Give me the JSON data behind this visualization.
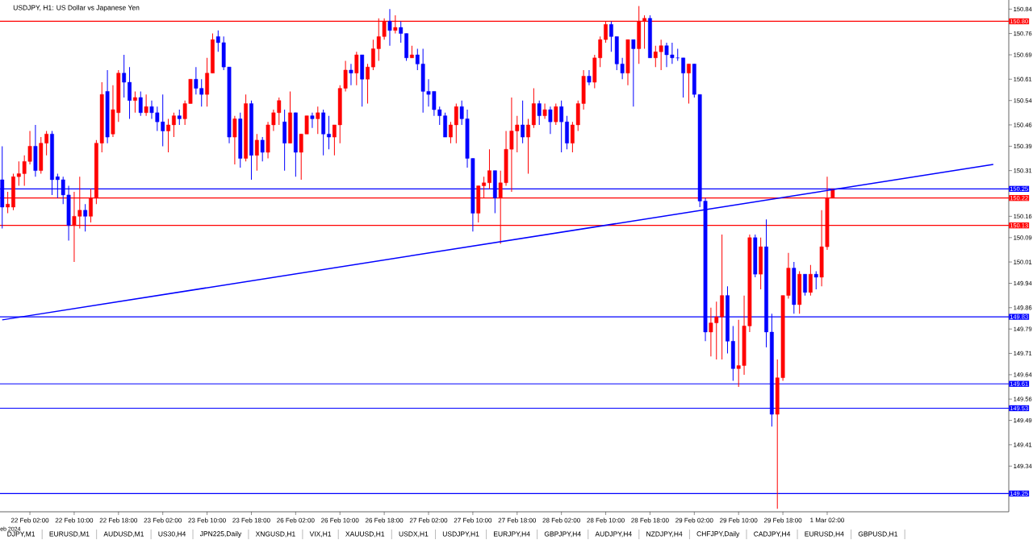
{
  "chart_data": {
    "type": "candlestick",
    "title": "USDJPY, H1:  US Dollar vs Japanese Yen",
    "categories": [
      null,
      null,
      null,
      null,
      null,
      "22 Feb 02:00",
      null,
      null,
      null,
      null,
      null,
      null,
      null,
      "22 Feb 10:00",
      null,
      null,
      null,
      null,
      null,
      null,
      null,
      "22 Feb 18:00",
      null,
      null,
      null,
      null,
      null,
      null,
      null,
      "23 Feb 02:00",
      null,
      null,
      null,
      null,
      null,
      null,
      null,
      "23 Feb 10:00",
      null,
      null,
      null,
      null,
      null,
      null,
      null,
      "23 Feb 18:00",
      null,
      null,
      null,
      null,
      null,
      null,
      null,
      "26 Feb 02:00",
      null,
      null,
      null,
      null,
      null,
      null,
      null,
      "26 Feb 10:00",
      null,
      null,
      null,
      null,
      null,
      null,
      null,
      "26 Feb 18:00",
      null,
      null,
      null,
      null,
      null,
      null,
      null,
      "27 Feb 02:00",
      null,
      null,
      null,
      null,
      null,
      null,
      null,
      "27 Feb 10:00",
      null,
      null,
      null,
      null,
      null,
      null,
      null,
      "27 Feb 18:00",
      null,
      null,
      null,
      null,
      null,
      null,
      null,
      "28 Feb 02:00",
      null,
      null,
      null,
      null,
      null,
      null,
      null,
      "28 Feb 10:00",
      null,
      null,
      null,
      null,
      null,
      null,
      null,
      "28 Feb 18:00",
      null,
      null,
      null,
      null,
      null,
      null,
      null,
      "29 Feb 02:00",
      null,
      null,
      null,
      null,
      null,
      null,
      null,
      "29 Feb 10:00",
      null,
      null,
      null,
      null,
      null,
      null,
      null,
      "29 Feb 18:00",
      null,
      null,
      null,
      null,
      null,
      null,
      null,
      "1 Mar 02:00",
      null,
      null,
      null,
      null,
      null,
      null,
      null,
      null,
      null,
      null,
      null,
      null,
      null,
      null,
      null,
      null,
      null,
      null,
      null,
      null,
      null,
      null,
      null,
      null,
      null,
      null,
      null,
      null,
      null,
      null
    ],
    "ohlc": [
      [
        150.28,
        150.39,
        150.12,
        150.19
      ],
      [
        150.19,
        150.24,
        150.17,
        150.2
      ],
      [
        150.19,
        150.3,
        150.18,
        150.29
      ],
      [
        150.29,
        150.34,
        150.26,
        150.3
      ],
      [
        150.3,
        150.36,
        150.26,
        150.34
      ],
      [
        150.34,
        150.44,
        150.33,
        150.39
      ],
      [
        150.39,
        150.46,
        150.29,
        150.31
      ],
      [
        150.31,
        150.42,
        150.3,
        150.4
      ],
      [
        150.4,
        150.44,
        150.36,
        150.43
      ],
      [
        150.43,
        150.44,
        150.23,
        150.28
      ],
      [
        150.29,
        150.3,
        150.22,
        150.28
      ],
      [
        150.28,
        150.29,
        150.2,
        150.23
      ],
      [
        150.23,
        150.26,
        150.08,
        150.13
      ],
      [
        150.13,
        150.24,
        150.01,
        150.16
      ],
      [
        150.16,
        150.29,
        150.12,
        150.18
      ],
      [
        150.18,
        150.2,
        150.11,
        150.16
      ],
      [
        150.16,
        150.25,
        150.14,
        150.22
      ],
      [
        150.22,
        150.41,
        150.2,
        150.4
      ],
      [
        150.4,
        150.6,
        150.37,
        150.56
      ],
      [
        150.57,
        150.64,
        150.4,
        150.42
      ],
      [
        150.43,
        150.59,
        150.42,
        150.51
      ],
      [
        150.5,
        150.64,
        150.47,
        150.63
      ],
      [
        150.63,
        150.69,
        150.55,
        150.6
      ],
      [
        150.6,
        150.65,
        150.48,
        150.54
      ],
      [
        150.54,
        150.57,
        150.5,
        150.55
      ],
      [
        150.55,
        150.57,
        150.49,
        150.5
      ],
      [
        150.5,
        150.56,
        150.49,
        150.52
      ],
      [
        150.52,
        150.54,
        150.48,
        150.5
      ],
      [
        150.5,
        150.52,
        150.44,
        150.47
      ],
      [
        150.47,
        150.56,
        150.39,
        150.44
      ],
      [
        150.44,
        150.48,
        150.37,
        150.46
      ],
      [
        150.46,
        150.5,
        150.42,
        150.49
      ],
      [
        150.49,
        150.51,
        150.46,
        150.48
      ],
      [
        150.48,
        150.54,
        150.46,
        150.53
      ],
      [
        150.53,
        150.61,
        150.53,
        150.61
      ],
      [
        150.61,
        150.65,
        150.56,
        150.58
      ],
      [
        150.58,
        150.61,
        150.52,
        150.56
      ],
      [
        150.56,
        150.68,
        150.52,
        150.63
      ],
      [
        150.63,
        150.76,
        150.63,
        150.74
      ],
      [
        150.75,
        150.77,
        150.7,
        150.73
      ],
      [
        150.73,
        150.75,
        150.64,
        150.65
      ],
      [
        150.65,
        150.65,
        150.4,
        150.42
      ],
      [
        150.42,
        150.49,
        150.33,
        150.48
      ],
      [
        150.48,
        150.5,
        150.32,
        150.35
      ],
      [
        150.35,
        150.56,
        150.34,
        150.53
      ],
      [
        150.53,
        150.54,
        150.28,
        150.36
      ],
      [
        150.36,
        150.43,
        150.31,
        150.41
      ],
      [
        150.41,
        150.42,
        150.34,
        150.37
      ],
      [
        150.37,
        150.47,
        150.35,
        150.46
      ],
      [
        150.46,
        150.51,
        150.44,
        150.5
      ],
      [
        150.5,
        150.55,
        150.46,
        150.54
      ],
      [
        150.47,
        150.51,
        150.31,
        150.4
      ],
      [
        150.4,
        150.57,
        150.4,
        150.5
      ],
      [
        150.5,
        150.5,
        150.29,
        150.37
      ],
      [
        150.37,
        150.43,
        150.28,
        150.43
      ],
      [
        150.43,
        150.49,
        150.43,
        150.49
      ],
      [
        150.49,
        150.5,
        150.45,
        150.48
      ],
      [
        150.48,
        150.52,
        150.43,
        150.5
      ],
      [
        150.5,
        150.51,
        150.36,
        150.43
      ],
      [
        150.43,
        150.49,
        150.38,
        150.42
      ],
      [
        150.42,
        150.46,
        150.36,
        150.46
      ],
      [
        150.46,
        150.59,
        150.4,
        150.58
      ],
      [
        150.58,
        150.67,
        150.57,
        150.64
      ],
      [
        150.64,
        150.66,
        150.59,
        150.63
      ],
      [
        150.63,
        150.7,
        150.59,
        150.69
      ],
      [
        150.69,
        150.69,
        150.52,
        150.61
      ],
      [
        150.61,
        150.66,
        150.53,
        150.65
      ],
      [
        150.65,
        150.74,
        150.64,
        150.71
      ],
      [
        150.71,
        150.81,
        150.67,
        150.75
      ],
      [
        150.75,
        150.81,
        150.74,
        150.8
      ],
      [
        150.8,
        150.84,
        150.72,
        150.77
      ],
      [
        150.77,
        150.82,
        150.76,
        150.78
      ],
      [
        150.78,
        150.8,
        150.73,
        150.76
      ],
      [
        150.76,
        150.76,
        150.67,
        150.68
      ],
      [
        150.68,
        150.72,
        150.68,
        150.69
      ],
      [
        150.69,
        150.71,
        150.64,
        150.66
      ],
      [
        150.66,
        150.71,
        150.5,
        150.57
      ],
      [
        150.57,
        150.61,
        150.52,
        150.56
      ],
      [
        150.57,
        150.57,
        150.49,
        150.51
      ],
      [
        150.51,
        150.52,
        150.46,
        150.49
      ],
      [
        150.49,
        150.5,
        150.42,
        150.42
      ],
      [
        150.42,
        150.47,
        150.4,
        150.46
      ],
      [
        150.46,
        150.53,
        150.4,
        150.52
      ],
      [
        150.52,
        150.54,
        150.46,
        150.48
      ],
      [
        150.48,
        150.51,
        150.32,
        150.35
      ],
      [
        150.35,
        150.35,
        150.11,
        150.17
      ],
      [
        150.17,
        150.26,
        150.14,
        150.26
      ],
      [
        150.26,
        150.29,
        150.22,
        150.27
      ],
      [
        150.27,
        150.38,
        150.25,
        150.31
      ],
      [
        150.31,
        150.31,
        150.17,
        150.22
      ],
      [
        150.22,
        150.31,
        150.07,
        150.27
      ],
      [
        150.27,
        150.44,
        150.26,
        150.38
      ],
      [
        150.38,
        150.55,
        150.24,
        150.44
      ],
      [
        150.44,
        150.49,
        150.37,
        150.46
      ],
      [
        150.46,
        150.54,
        150.4,
        150.42
      ],
      [
        150.42,
        150.48,
        150.3,
        150.46
      ],
      [
        150.46,
        150.58,
        150.45,
        150.53
      ],
      [
        150.53,
        150.54,
        150.46,
        150.49
      ],
      [
        150.49,
        150.53,
        150.48,
        150.51
      ],
      [
        150.51,
        150.52,
        150.43,
        150.47
      ],
      [
        150.47,
        150.53,
        150.46,
        150.52
      ],
      [
        150.52,
        150.54,
        150.37,
        150.47
      ],
      [
        150.47,
        150.49,
        150.38,
        150.4
      ],
      [
        150.4,
        150.47,
        150.37,
        150.46
      ],
      [
        150.46,
        150.54,
        150.44,
        150.53
      ],
      [
        150.53,
        150.64,
        150.51,
        150.62
      ],
      [
        150.62,
        150.64,
        150.59,
        150.6
      ],
      [
        150.6,
        150.69,
        150.58,
        150.68
      ],
      [
        150.68,
        150.75,
        150.65,
        150.74
      ],
      [
        150.74,
        150.8,
        150.73,
        150.79
      ],
      [
        150.79,
        150.8,
        150.7,
        150.75
      ],
      [
        150.75,
        150.75,
        150.64,
        150.66
      ],
      [
        150.66,
        150.68,
        150.61,
        150.63
      ],
      [
        150.63,
        150.74,
        150.59,
        150.74
      ],
      [
        150.74,
        150.74,
        150.52,
        150.71
      ],
      [
        150.71,
        150.85,
        150.66,
        150.8
      ],
      [
        150.8,
        150.82,
        150.71,
        150.81
      ],
      [
        150.81,
        150.82,
        150.68,
        150.68
      ],
      [
        150.68,
        150.72,
        150.65,
        150.7
      ],
      [
        150.7,
        150.74,
        150.64,
        150.72
      ],
      [
        150.72,
        150.73,
        150.65,
        150.69
      ],
      [
        150.69,
        150.73,
        150.66,
        150.68
      ],
      [
        150.68,
        150.71,
        150.67,
        150.68
      ],
      [
        150.68,
        150.68,
        150.55,
        150.63
      ],
      [
        150.63,
        150.66,
        150.53,
        150.66
      ],
      [
        150.66,
        150.66,
        150.55,
        150.56
      ],
      [
        150.56,
        150.56,
        150.19,
        150.21
      ],
      [
        150.21,
        150.22,
        149.75,
        149.78
      ],
      [
        149.78,
        149.86,
        149.7,
        149.81
      ],
      [
        149.81,
        149.88,
        149.69,
        149.83
      ],
      [
        149.83,
        150.1,
        149.69,
        149.9
      ],
      [
        149.9,
        149.93,
        149.71,
        149.75
      ],
      [
        149.75,
        149.8,
        149.62,
        149.66
      ],
      [
        149.66,
        149.82,
        149.6,
        149.67
      ],
      [
        149.67,
        149.9,
        149.64,
        149.8
      ],
      [
        149.8,
        150.1,
        149.78,
        150.09
      ],
      [
        150.09,
        150.1,
        149.96,
        149.97
      ],
      [
        149.97,
        150.09,
        149.92,
        150.06
      ],
      [
        150.06,
        150.15,
        149.73,
        149.78
      ],
      [
        149.78,
        149.84,
        149.47,
        149.51
      ],
      [
        149.51,
        149.69,
        149.2,
        149.63
      ],
      [
        149.63,
        149.9,
        149.62,
        149.9
      ],
      [
        149.9,
        150.04,
        149.89,
        149.99
      ],
      [
        149.99,
        150.01,
        149.84,
        149.87
      ],
      [
        149.87,
        149.98,
        149.84,
        149.97
      ],
      [
        149.97,
        149.97,
        149.9,
        149.91
      ],
      [
        149.91,
        150.0,
        149.9,
        149.97
      ],
      [
        149.97,
        149.98,
        149.92,
        149.96
      ],
      [
        149.96,
        150.18,
        149.93,
        150.06
      ],
      [
        150.06,
        150.29,
        150.05,
        150.22
      ],
      [
        150.22,
        150.25,
        150.22,
        150.25
      ],
      null,
      null,
      null,
      null,
      null,
      null,
      null,
      null,
      null,
      null,
      null,
      null,
      null,
      null,
      null,
      null,
      null,
      null,
      null,
      null,
      null,
      null,
      null,
      null,
      null,
      null,
      null,
      null,
      null
    ],
    "colors": [
      "#0000ff",
      "#ff0000",
      "#ff0000",
      "#ff0000",
      "#ff0000",
      "#ff0000",
      "#0000ff",
      "#ff0000",
      "#ff0000",
      "#0000ff",
      "#0000ff",
      "#0000ff",
      "#0000ff",
      "#ff0000",
      "#ff0000",
      "#0000ff",
      "#ff0000",
      "#ff0000",
      "#ff0000",
      "#0000ff",
      "#ff0000",
      "#ff0000",
      "#0000ff",
      "#0000ff",
      "#ff0000",
      "#0000ff",
      "#ff0000",
      "#0000ff",
      "#0000ff",
      "#0000ff",
      "#ff0000",
      "#ff0000",
      "#0000ff",
      "#ff0000",
      "#ff0000",
      "#0000ff",
      "#0000ff",
      "#ff0000",
      "#ff0000",
      "#0000ff",
      "#0000ff",
      "#0000ff",
      "#ff0000",
      "#0000ff",
      "#ff0000",
      "#0000ff",
      "#ff0000",
      "#0000ff",
      "#ff0000",
      "#ff0000",
      "#ff0000",
      "#0000ff",
      "#ff0000",
      "#0000ff",
      "#ff0000",
      "#ff0000",
      "#0000ff",
      "#ff0000",
      "#0000ff",
      "#0000ff",
      "#ff0000",
      "#ff0000",
      "#ff0000",
      "#0000ff",
      "#ff0000",
      "#0000ff",
      "#ff0000",
      "#ff0000",
      "#ff0000",
      "#ff0000",
      "#0000ff",
      "#ff0000",
      "#0000ff",
      "#0000ff",
      "#ff0000",
      "#0000ff",
      "#0000ff",
      "#0000ff",
      "#0000ff",
      "#0000ff",
      "#0000ff",
      "#ff0000",
      "#ff0000",
      "#0000ff",
      "#0000ff",
      "#0000ff",
      "#ff0000",
      "#ff0000",
      "#ff0000",
      "#0000ff",
      "#ff0000",
      "#ff0000",
      "#ff0000",
      "#ff0000",
      "#0000ff",
      "#ff0000",
      "#ff0000",
      "#0000ff",
      "#ff0000",
      "#0000ff",
      "#ff0000",
      "#0000ff",
      "#0000ff",
      "#ff0000",
      "#ff0000",
      "#ff0000",
      "#0000ff",
      "#ff0000",
      "#ff0000",
      "#ff0000",
      "#0000ff",
      "#0000ff",
      "#0000ff",
      "#ff0000",
      "#0000ff",
      "#ff0000",
      "#ff0000",
      "#0000ff",
      "#ff0000",
      "#ff0000",
      "#0000ff",
      "#0000ff",
      "#0000ff",
      "#0000ff",
      "#ff0000",
      "#0000ff",
      "#0000ff",
      "#0000ff",
      "#ff0000",
      "#ff0000",
      "#ff0000",
      "#0000ff",
      "#0000ff",
      "#ff0000",
      "#ff0000",
      "#ff0000",
      "#0000ff",
      "#ff0000",
      "#0000ff",
      "#0000ff",
      "#ff0000",
      "#ff0000",
      "#ff0000",
      "#0000ff",
      "#ff0000",
      "#0000ff",
      "#ff0000",
      "#0000ff",
      "#ff0000",
      "#ff0000",
      "#ff0000",
      null,
      null,
      null,
      null,
      null,
      null,
      null,
      null,
      null,
      null,
      null,
      null,
      null,
      null,
      null,
      null,
      null,
      null,
      null,
      null,
      null,
      null,
      null,
      null,
      null,
      null,
      null,
      null,
      null
    ],
    "series": [
      {
        "type": "line",
        "color": "#0000ff",
        "values": [
          149.82,
          null,
          null,
          null,
          null,
          null,
          null,
          null,
          null,
          null,
          null,
          null,
          null,
          null,
          null,
          null,
          null,
          null,
          null,
          null,
          null,
          null,
          null,
          null,
          null,
          null,
          null,
          null,
          null,
          null,
          null,
          null,
          null,
          null,
          null,
          null,
          null,
          null,
          null,
          null,
          null,
          null,
          null,
          null,
          null,
          null,
          null,
          null,
          null,
          null,
          null,
          null,
          null,
          null,
          null,
          null,
          null,
          null,
          null,
          null,
          null,
          null,
          null,
          null,
          null,
          null,
          null,
          null,
          null,
          null,
          null,
          null,
          null,
          null,
          null,
          null,
          null,
          null,
          null,
          null,
          null,
          null,
          null,
          null,
          null,
          null,
          null,
          null,
          null,
          null,
          null,
          null,
          null,
          null,
          null,
          null,
          null,
          null,
          null,
          null,
          null,
          null,
          null,
          null,
          null,
          null,
          null,
          null,
          null,
          null,
          null,
          null,
          null,
          null,
          null,
          null,
          null,
          null,
          null,
          null,
          null,
          null,
          null,
          null,
          null,
          null,
          null,
          null,
          null,
          null,
          null,
          null,
          null,
          null,
          null,
          null,
          null,
          null,
          null,
          null,
          null,
          null,
          null,
          null,
          null,
          null,
          null,
          null,
          null,
          null,
          null,
          null,
          null,
          null,
          null,
          null,
          null,
          null,
          null,
          null,
          null,
          null,
          null,
          null,
          null,
          null,
          null,
          null,
          null,
          null,
          null,
          null,
          null,
          null,
          null,
          null,
          null,
          null,
          null,
          150.33
        ]
      }
    ],
    "ylim": [
      149.19,
      150.87
    ],
    "yticks": [
      150.84,
      150.76,
      150.69,
      150.61,
      150.54,
      150.46,
      150.39,
      150.31,
      150.16,
      150.09,
      150.01,
      149.94,
      149.86,
      149.79,
      149.71,
      149.64,
      149.56,
      149.49,
      149.41,
      149.34
    ],
    "ref_lines": [
      {
        "axis": "y",
        "value": 150.8,
        "label": "150.80",
        "color": "#ff0000"
      },
      {
        "axis": "y",
        "value": 150.25,
        "label": "150.25",
        "color": "#0000ff"
      },
      {
        "axis": "y",
        "value": 150.22,
        "label": "150.22",
        "color": "#ff0000"
      },
      {
        "axis": "y",
        "value": 150.13,
        "label": "150.13",
        "color": "#ff0000"
      },
      {
        "axis": "y",
        "value": 149.83,
        "label": "149.83",
        "color": "#0000ff"
      },
      {
        "axis": "y",
        "value": 149.61,
        "label": "149.61",
        "color": "#0000ff"
      },
      {
        "axis": "y",
        "value": 149.53,
        "label": "149.53",
        "color": "#0000ff"
      },
      {
        "axis": "y",
        "value": 149.25,
        "label": "149.25",
        "color": "#0000ff"
      }
    ],
    "annotations": [
      "eb 2024",
      "DJPY,M1",
      "EURUSD,M1",
      "AUDUSD,M1",
      "US30,H4",
      "JPN225,Daily",
      "XNGUSD,H1",
      "VIX,H1",
      "XAUUSD,H1",
      "USDX,H1",
      "USDJPY,H1",
      "EURJPY,H4",
      "GBPJPY,H4",
      "AUDJPY,H4",
      "NZDJPY,H4",
      "CHFJPY,Daily",
      "CADJPY,H4",
      "EURUSD,H4",
      "GBPUSD,H1"
    ]
  }
}
